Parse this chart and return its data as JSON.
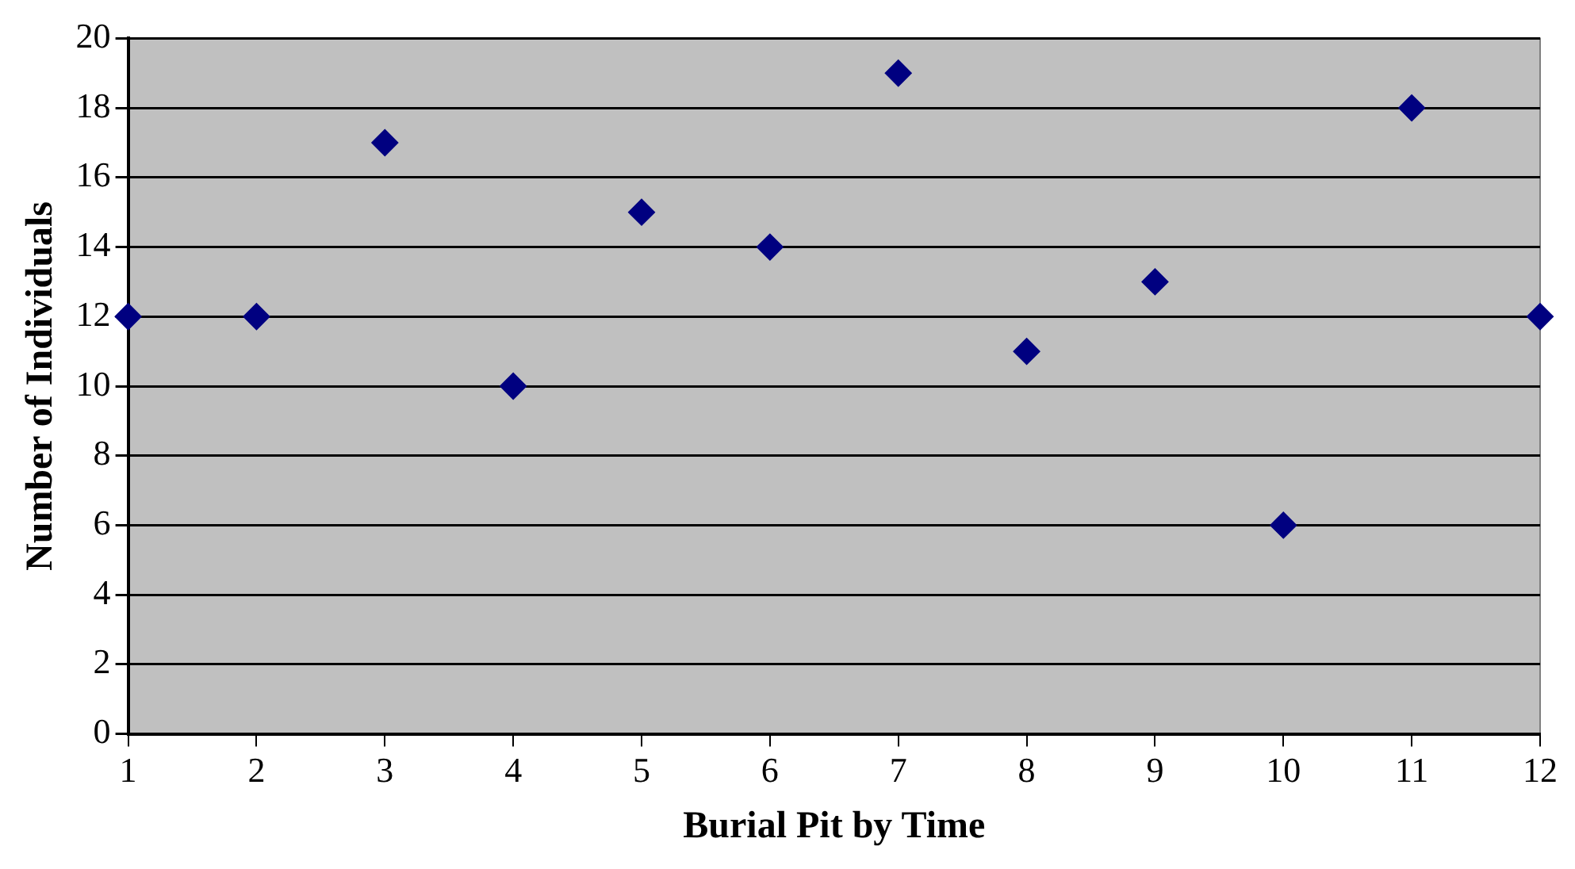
{
  "chart_data": {
    "type": "scatter",
    "xlabel": "Burial Pit by Time",
    "ylabel": "Number of Individuals",
    "x": [
      1,
      2,
      3,
      4,
      5,
      6,
      7,
      8,
      9,
      10,
      11,
      12
    ],
    "values": [
      12,
      12,
      17,
      10,
      15,
      14,
      19,
      11,
      13,
      6,
      18,
      12
    ],
    "color": "#000080",
    "marker": "diamond",
    "grid": "y",
    "xlim": [
      1,
      12
    ],
    "xticks": [
      1,
      2,
      3,
      4,
      5,
      6,
      7,
      8,
      9,
      10,
      11,
      12
    ],
    "ylim": [
      0,
      20
    ],
    "yticks": [
      0,
      2,
      4,
      6,
      8,
      10,
      12,
      14,
      16,
      18,
      20
    ]
  }
}
